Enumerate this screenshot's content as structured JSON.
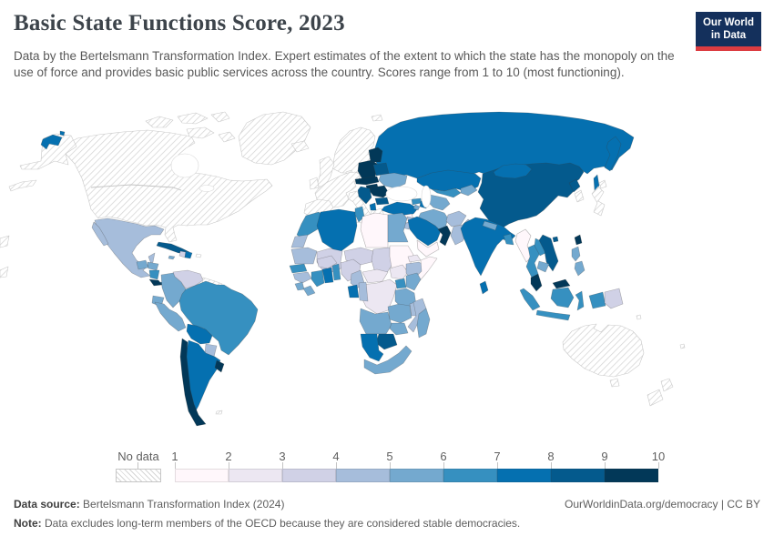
{
  "header": {
    "title": "Basic State Functions Score, 2023",
    "subtitle": "Data by the Bertelsmann Transformation Index. Expert estimates of the extent to which the state has the monopoly on the use of force and provides basic public services across the country. Scores range from 1 to 10 (most functioning).",
    "logo": {
      "line1": "Our World",
      "line2": "in Data",
      "bg": "#14305c",
      "accent": "#dc3c41"
    }
  },
  "legend": {
    "no_data_label": "No data",
    "tick_labels": [
      "1",
      "2",
      "3",
      "4",
      "5",
      "6",
      "7",
      "8",
      "9",
      "10"
    ],
    "colors": [
      "#fff7fb",
      "#ece7f2",
      "#d0d1e6",
      "#a6bddb",
      "#74a9cf",
      "#3690c0",
      "#0570b0",
      "#045a8d",
      "#023858"
    ]
  },
  "footer": {
    "source_label": "Data source:",
    "source_text": " Bertelsmann Transformation Index (2024)",
    "right_text": "OurWorldinData.org/democracy | CC BY",
    "note_label": "Note:",
    "note_text": " Data excludes long-term members of the OECD because they are considered stable democracies."
  },
  "chart_data": {
    "type": "choropleth",
    "projection": "world",
    "title": "Basic State Functions Score, 2023",
    "unit": "Score (1 to 10, most functioning)",
    "source": "Bertelsmann Transformation Index (2024)",
    "note": "Data excludes long-term members of the OECD because they are considered stable democracies.",
    "legend": {
      "no_data_label": "No data",
      "bin_edges": [
        1,
        2,
        3,
        4,
        5,
        6,
        7,
        8,
        9,
        10
      ],
      "bin_colors": [
        "#fff7fb",
        "#ece7f2",
        "#d0d1e6",
        "#a6bddb",
        "#74a9cf",
        "#3690c0",
        "#0570b0",
        "#045a8d",
        "#023858"
      ]
    },
    "no_data": [
      "Canada",
      "United States",
      "Greenland",
      "Iceland",
      "United Kingdom",
      "Ireland",
      "Norway",
      "Sweden",
      "Finland",
      "Denmark",
      "France",
      "Germany",
      "Spain",
      "Portugal",
      "Italy",
      "Greece",
      "Switzerland",
      "Austria",
      "Belgium",
      "Netherlands",
      "Israel",
      "Japan",
      "South Korea",
      "Australia",
      "New Zealand",
      "Guyana",
      "Suriname"
    ],
    "values": {
      "Mexico": 4.5,
      "Cuba": 8.5,
      "Haiti": 3.5,
      "Dominican Republic": 7.5,
      "Jamaica": 5.5,
      "Guatemala": 5.5,
      "Honduras": 5.5,
      "Nicaragua": 6.5,
      "Costa Rica": 9.5,
      "Panama": 8.5,
      "Colombia": 5.5,
      "Venezuela": 3.5,
      "Ecuador": 5.5,
      "Peru": 5.5,
      "Brazil": 6.5,
      "Bolivia": 7.5,
      "Paraguay": 4.5,
      "Chile": 9.5,
      "Argentina": 7.5,
      "Uruguay": 9.5,
      "Poland": 9.5,
      "Czechia": 9.5,
      "Slovakia": 9.5,
      "Hungary": 9.5,
      "Estonia": 9.5,
      "Latvia": 9.5,
      "Lithuania": 9.5,
      "Romania": 9.5,
      "Serbia": 8.5,
      "Croatia": 8.5,
      "Bulgaria": 8.5,
      "Albania": 7.5,
      "North Macedonia": 7.5,
      "Belarus": 8.5,
      "Ukraine": 5.5,
      "Moldova": 6.5,
      "Russia": 7.5,
      "Turkey": 7.5,
      "Georgia": 6.5,
      "Armenia": 5.5,
      "Azerbaijan": 7.5,
      "Kazakhstan": 7.5,
      "Uzbekistan": 6.5,
      "Turkmenistan": 5.5,
      "Kyrgyzstan": 5.5,
      "Tajikistan": 5.5,
      "Mongolia": 7.5,
      "China": 8.5,
      "North Korea": 8.5,
      "Taiwan": 9.5,
      "India": 7.5,
      "Nepal": 5.5,
      "Bangladesh": 6.5,
      "Sri Lanka": 7.5,
      "Pakistan": 4.5,
      "Afghanistan": 4.5,
      "Iran": 5.5,
      "Iraq": 4.5,
      "Syria": 1.5,
      "Lebanon": 2.5,
      "Jordan": 4.5,
      "Saudi Arabia": 7.5,
      "Yemen": 1.5,
      "Oman": 9.5,
      "United Arab Emirates": 9.5,
      "Myanmar": 1.5,
      "Thailand": 6.5,
      "Laos": 6.5,
      "Vietnam": 8.5,
      "Cambodia": 5.5,
      "Malaysia": 9.5,
      "Indonesia": 6.5,
      "Philippines": 5.5,
      "Papua New Guinea": 3.5,
      "Morocco": 6.5,
      "Western Sahara": 4.5,
      "Algeria": 7.5,
      "Tunisia": 6.5,
      "Libya": 1.5,
      "Egypt": 5.5,
      "Mauritania": 4.5,
      "Mali": 3.5,
      "Niger": 3.5,
      "Chad": 3.5,
      "Sudan": 1.5,
      "South Sudan": 2.5,
      "Eritrea": 2.5,
      "Ethiopia": 4.5,
      "Somalia": 1.5,
      "Senegal": 6.5,
      "Guinea": 4.5,
      "Sierra Leone": 5.5,
      "Liberia": 5.5,
      "Cote d'Ivoire": 6.5,
      "Ghana": 7.5,
      "Togo": 6.5,
      "Benin": 6.5,
      "Burkina Faso": 3.5,
      "Nigeria": 3.5,
      "Cameroon": 4.5,
      "Central African Republic": 2.5,
      "DR Congo": 2.5,
      "Congo": 4.5,
      "Gabon": 7.5,
      "Uganda": 6.5,
      "Kenya": 5.5,
      "Tanzania": 5.5,
      "Angola": 5.5,
      "Zambia": 5.5,
      "Malawi": 4.5,
      "Mozambique": 4.5,
      "Zimbabwe": 5.5,
      "Botswana": 8.5,
      "Namibia": 7.5,
      "South Africa": 5.5,
      "Madagascar": 5.5
    }
  }
}
